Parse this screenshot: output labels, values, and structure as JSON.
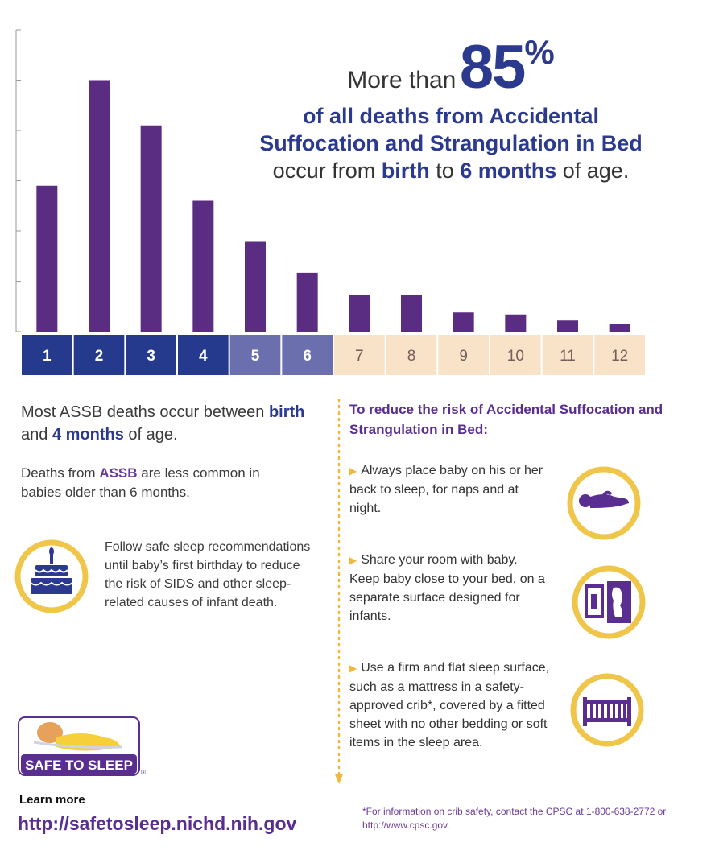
{
  "chart_data": {
    "type": "bar",
    "categories": [
      "1",
      "2",
      "3",
      "4",
      "5",
      "6",
      "7",
      "8",
      "9",
      "10",
      "11",
      "12"
    ],
    "values": [
      29,
      50,
      41,
      26,
      18,
      11.7,
      7.3,
      7.3,
      3.8,
      3.4,
      2.2,
      1.5
    ],
    "ylim": [
      0,
      60
    ],
    "label_colors": [
      "#253a8c",
      "#253a8c",
      "#253a8c",
      "#253a8c",
      "#6b6fae",
      "#6b6fae",
      "#f8e3c9",
      "#f8e3c9",
      "#f8e3c9",
      "#f8e3c9",
      "#f8e3c9",
      "#f8e3c9"
    ],
    "label_text_colors": [
      "#ffffff",
      "#ffffff",
      "#ffffff",
      "#ffffff",
      "#ffffff",
      "#ffffff",
      "#7a5a5a",
      "#7a5a5a",
      "#7a5a5a",
      "#7a5a5a",
      "#7a5a5a",
      "#7a5a5a"
    ],
    "bar_color": "#5a2d82"
  },
  "headline": {
    "prefix": "More than",
    "big_number": "85",
    "percent": "%",
    "line2": "of all deaths from Accidental",
    "line3": "Suffocation and Strangulation in Bed",
    "line4_a": "occur from ",
    "line4_b": "birth",
    "line4_c": " to ",
    "line4_d": "6 months",
    "line4_e": " of age."
  },
  "left": {
    "p1_a": "Most ASSB deaths occur between ",
    "p1_b": "birth",
    "p1_c": "and ",
    "p1_d": "4 months",
    "p1_e": " of age.",
    "p2_a": "Deaths from ",
    "p2_b": "ASSB",
    "p2_c": " are less common in babies older than 6 months.",
    "p3": "Follow safe sleep recommendations until baby’s first birthday to reduce the risk of SIDS and other sleep-related causes of infant death."
  },
  "right": {
    "heading": "To reduce the risk of Accidental Suffocation and Strangulation in Bed:",
    "tips": [
      "Always place baby on his or her back to sleep, for naps and at night.",
      "Share your room with baby. Keep baby close to your bed, on a separate surface designed for infants.",
      "Use a firm and flat sleep surface, such as a mattress in a safety-approved crib*, covered by a fitted sheet with no other bedding or soft items in the sleep area."
    ],
    "footnote": "*For information on crib safety, contact the CPSC at 1-800-638-2772 or http://www.cpsc.gov."
  },
  "footer": {
    "logo_text": "SAFE TO SLEEP",
    "registered": "®",
    "learn_more": "Learn more",
    "url": "http://safetosleep.nichd.nih.gov"
  },
  "colors": {
    "navy": "#2b3a8f",
    "purple": "#5a2d91",
    "gold": "#f0b93b",
    "peach": "#f8e3c9"
  }
}
